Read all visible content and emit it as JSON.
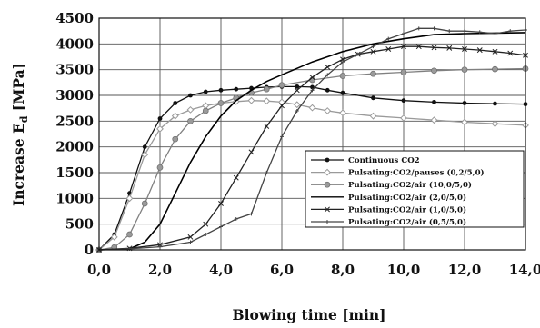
{
  "chart_data": {
    "type": "line",
    "xlabel": "Blowing time  [min]",
    "ylabel_main": "Increase E",
    "ylabel_sub": "d",
    "ylabel_unit": " [MPa]",
    "xlim": [
      0,
      14
    ],
    "ylim": [
      0,
      4500
    ],
    "grid": true,
    "legend_position": "center-right",
    "xticks": [
      0,
      2,
      4,
      6,
      8,
      10,
      12,
      14
    ],
    "xtick_labels": [
      "0,0",
      "2,0",
      "4,0",
      "6,0",
      "8,0",
      "10,0",
      "12,0",
      "14,0"
    ],
    "yticks": [
      0,
      500,
      1000,
      1500,
      2000,
      2500,
      3000,
      3500,
      4000,
      4500
    ],
    "ytick_labels": [
      "0",
      "500",
      "1000",
      "1500",
      "2000",
      "2500",
      "3000",
      "3500",
      "4000",
      "4500"
    ],
    "series": [
      {
        "name": "Continuous CO2",
        "color": "#111111",
        "marker": "filled-circle",
        "x": [
          0,
          0.5,
          1.0,
          1.5,
          2.0,
          2.5,
          3.0,
          3.5,
          4.0,
          4.5,
          5.0,
          5.5,
          6.0,
          6.5,
          7.0,
          7.5,
          8.0,
          9.0,
          10.0,
          11.0,
          12.0,
          13.0,
          14.0
        ],
        "y": [
          0,
          300,
          1100,
          2000,
          2550,
          2850,
          3000,
          3070,
          3100,
          3120,
          3140,
          3160,
          3170,
          3170,
          3160,
          3100,
          3050,
          2950,
          2900,
          2870,
          2850,
          2840,
          2830
        ]
      },
      {
        "name": "Pulsating:CO2/pauses (0,2/5,0)",
        "color": "#9a9a9a",
        "marker": "open-diamond",
        "x": [
          0,
          0.5,
          1.0,
          1.5,
          2.0,
          2.5,
          3.0,
          3.5,
          4.0,
          4.5,
          5.0,
          5.5,
          6.0,
          6.5,
          7.0,
          7.5,
          8.0,
          9.0,
          10.0,
          11.0,
          12.0,
          13.0,
          14.0
        ],
        "y": [
          0,
          250,
          1000,
          1850,
          2350,
          2600,
          2720,
          2800,
          2850,
          2880,
          2900,
          2890,
          2870,
          2820,
          2760,
          2700,
          2660,
          2600,
          2560,
          2520,
          2480,
          2450,
          2420
        ]
      },
      {
        "name": "Pulsating:CO2/air (10,0/5,0)",
        "color": "#808080",
        "marker": "filled-circle-gray",
        "x": [
          0,
          0.5,
          1.0,
          1.5,
          2.0,
          2.5,
          3.0,
          3.5,
          4.0,
          4.5,
          5.0,
          5.5,
          6.0,
          7.0,
          8.0,
          9.0,
          10.0,
          11.0,
          12.0,
          13.0,
          14.0
        ],
        "y": [
          0,
          50,
          300,
          900,
          1600,
          2150,
          2500,
          2700,
          2850,
          2950,
          3050,
          3120,
          3200,
          3300,
          3380,
          3420,
          3450,
          3480,
          3500,
          3510,
          3520
        ]
      },
      {
        "name": "Pulsating:CO2/air (2,0/5,0)",
        "color": "#000000",
        "marker": "none",
        "x": [
          0,
          1.0,
          1.5,
          2.0,
          2.5,
          3.0,
          3.5,
          4.0,
          4.5,
          5.0,
          5.5,
          6.0,
          7.0,
          8.0,
          9.0,
          10.0,
          11.0,
          12.0,
          13.0,
          14.0
        ],
        "y": [
          0,
          20,
          150,
          500,
          1100,
          1700,
          2200,
          2600,
          2900,
          3100,
          3270,
          3400,
          3650,
          3850,
          4000,
          4100,
          4180,
          4200,
          4210,
          4220
        ]
      },
      {
        "name": "Pulsating:CO2/air (1,0/5,0)",
        "color": "#222222",
        "marker": "cross",
        "x": [
          0,
          1.0,
          2.0,
          3.0,
          3.5,
          4.0,
          4.5,
          5.0,
          5.5,
          6.0,
          6.5,
          7.0,
          7.5,
          8.0,
          8.5,
          9.0,
          9.5,
          10.0,
          10.5,
          11.0,
          11.5,
          12.0,
          12.5,
          13.0,
          13.5,
          14.0
        ],
        "y": [
          0,
          30,
          100,
          250,
          500,
          900,
          1400,
          1900,
          2400,
          2800,
          3100,
          3350,
          3550,
          3700,
          3800,
          3850,
          3900,
          3950,
          3950,
          3930,
          3920,
          3900,
          3880,
          3850,
          3820,
          3780
        ]
      },
      {
        "name": "Pulsating:CO2/air (0,5/5,0)",
        "color": "#444444",
        "marker": "small-cross",
        "x": [
          0,
          1.0,
          2.0,
          3.0,
          3.5,
          4.0,
          4.5,
          5.0,
          5.5,
          6.0,
          6.5,
          7.0,
          7.5,
          8.0,
          8.5,
          9.0,
          9.5,
          10.0,
          10.5,
          11.0,
          11.5,
          12.0,
          12.5,
          13.0,
          13.5,
          14.0
        ],
        "y": [
          0,
          20,
          60,
          150,
          300,
          450,
          600,
          700,
          1500,
          2200,
          2700,
          3100,
          3400,
          3650,
          3800,
          3950,
          4100,
          4200,
          4300,
          4300,
          4250,
          4250,
          4230,
          4200,
          4250,
          4270
        ]
      }
    ]
  }
}
